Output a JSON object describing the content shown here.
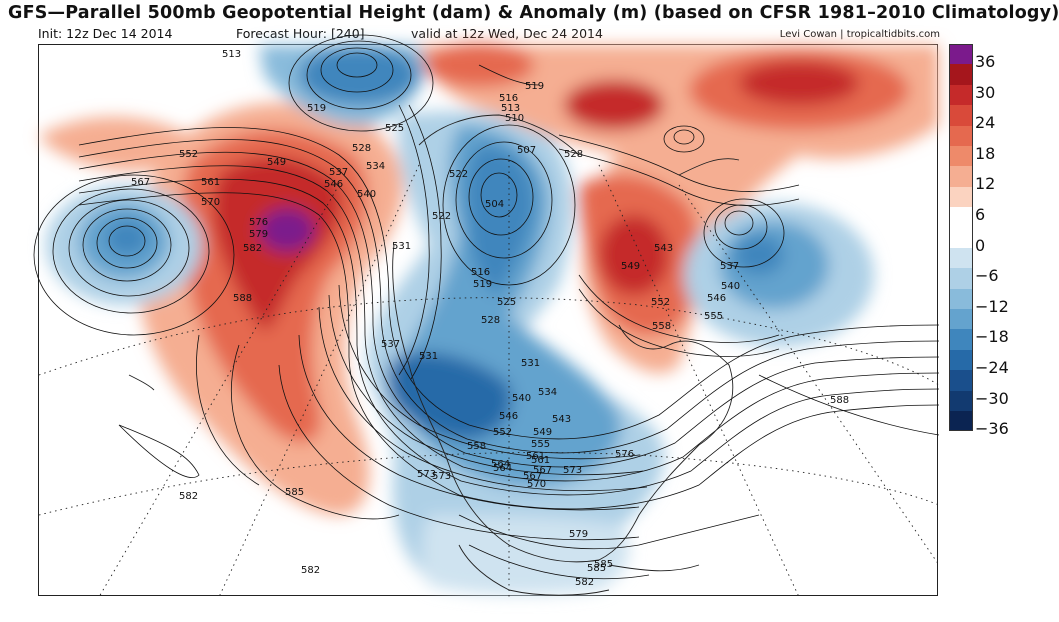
{
  "header": {
    "title": "GFS—Parallel 500mb Geopotential Height (dam) & Anomaly (m) (based on CFSR 1981–2010 Climatology)",
    "init": "Init: 12z Dec 14 2014",
    "forecast_hour": "Forecast Hour: [240]",
    "valid": "valid at 12z Wed, Dec 24 2014",
    "credit": "Levi Cowan | tropicaltidbits.com"
  },
  "colorbar": {
    "ticks": [
      "36",
      "30",
      "24",
      "18",
      "12",
      "6",
      "0",
      "−6",
      "−12",
      "−18",
      "−24",
      "−30",
      "−36"
    ],
    "colors": [
      "#7b1a8c",
      "#a5161c",
      "#c52a2a",
      "#d94a3a",
      "#e5694f",
      "#ee8a6a",
      "#f5ae92",
      "#fbd3c0",
      "#ffffff",
      "#ffffff",
      "#cfe3f0",
      "#aed0e6",
      "#89bbdb",
      "#64a3ce",
      "#3f86bd",
      "#266aa8",
      "#1a4f8c",
      "#123a70",
      "#0b2452"
    ]
  },
  "contour_labels": [
    "513",
    "519",
    "525",
    "516",
    "513",
    "510",
    "519",
    "507",
    "522",
    "528",
    "552",
    "549",
    "528",
    "534",
    "537",
    "546",
    "540",
    "567",
    "561",
    "570",
    "576",
    "579",
    "582",
    "522",
    "504",
    "531",
    "516",
    "519",
    "525",
    "531",
    "531",
    "543",
    "549",
    "537",
    "540",
    "546",
    "552",
    "555",
    "558",
    "561",
    "564",
    "567",
    "573",
    "585",
    "588",
    "528",
    "537",
    "540",
    "534",
    "543",
    "546",
    "549",
    "552",
    "555",
    "558",
    "564",
    "561",
    "567",
    "570",
    "573",
    "576",
    "573",
    "579",
    "582",
    "582",
    "585",
    "588",
    "585",
    "582"
  ]
}
